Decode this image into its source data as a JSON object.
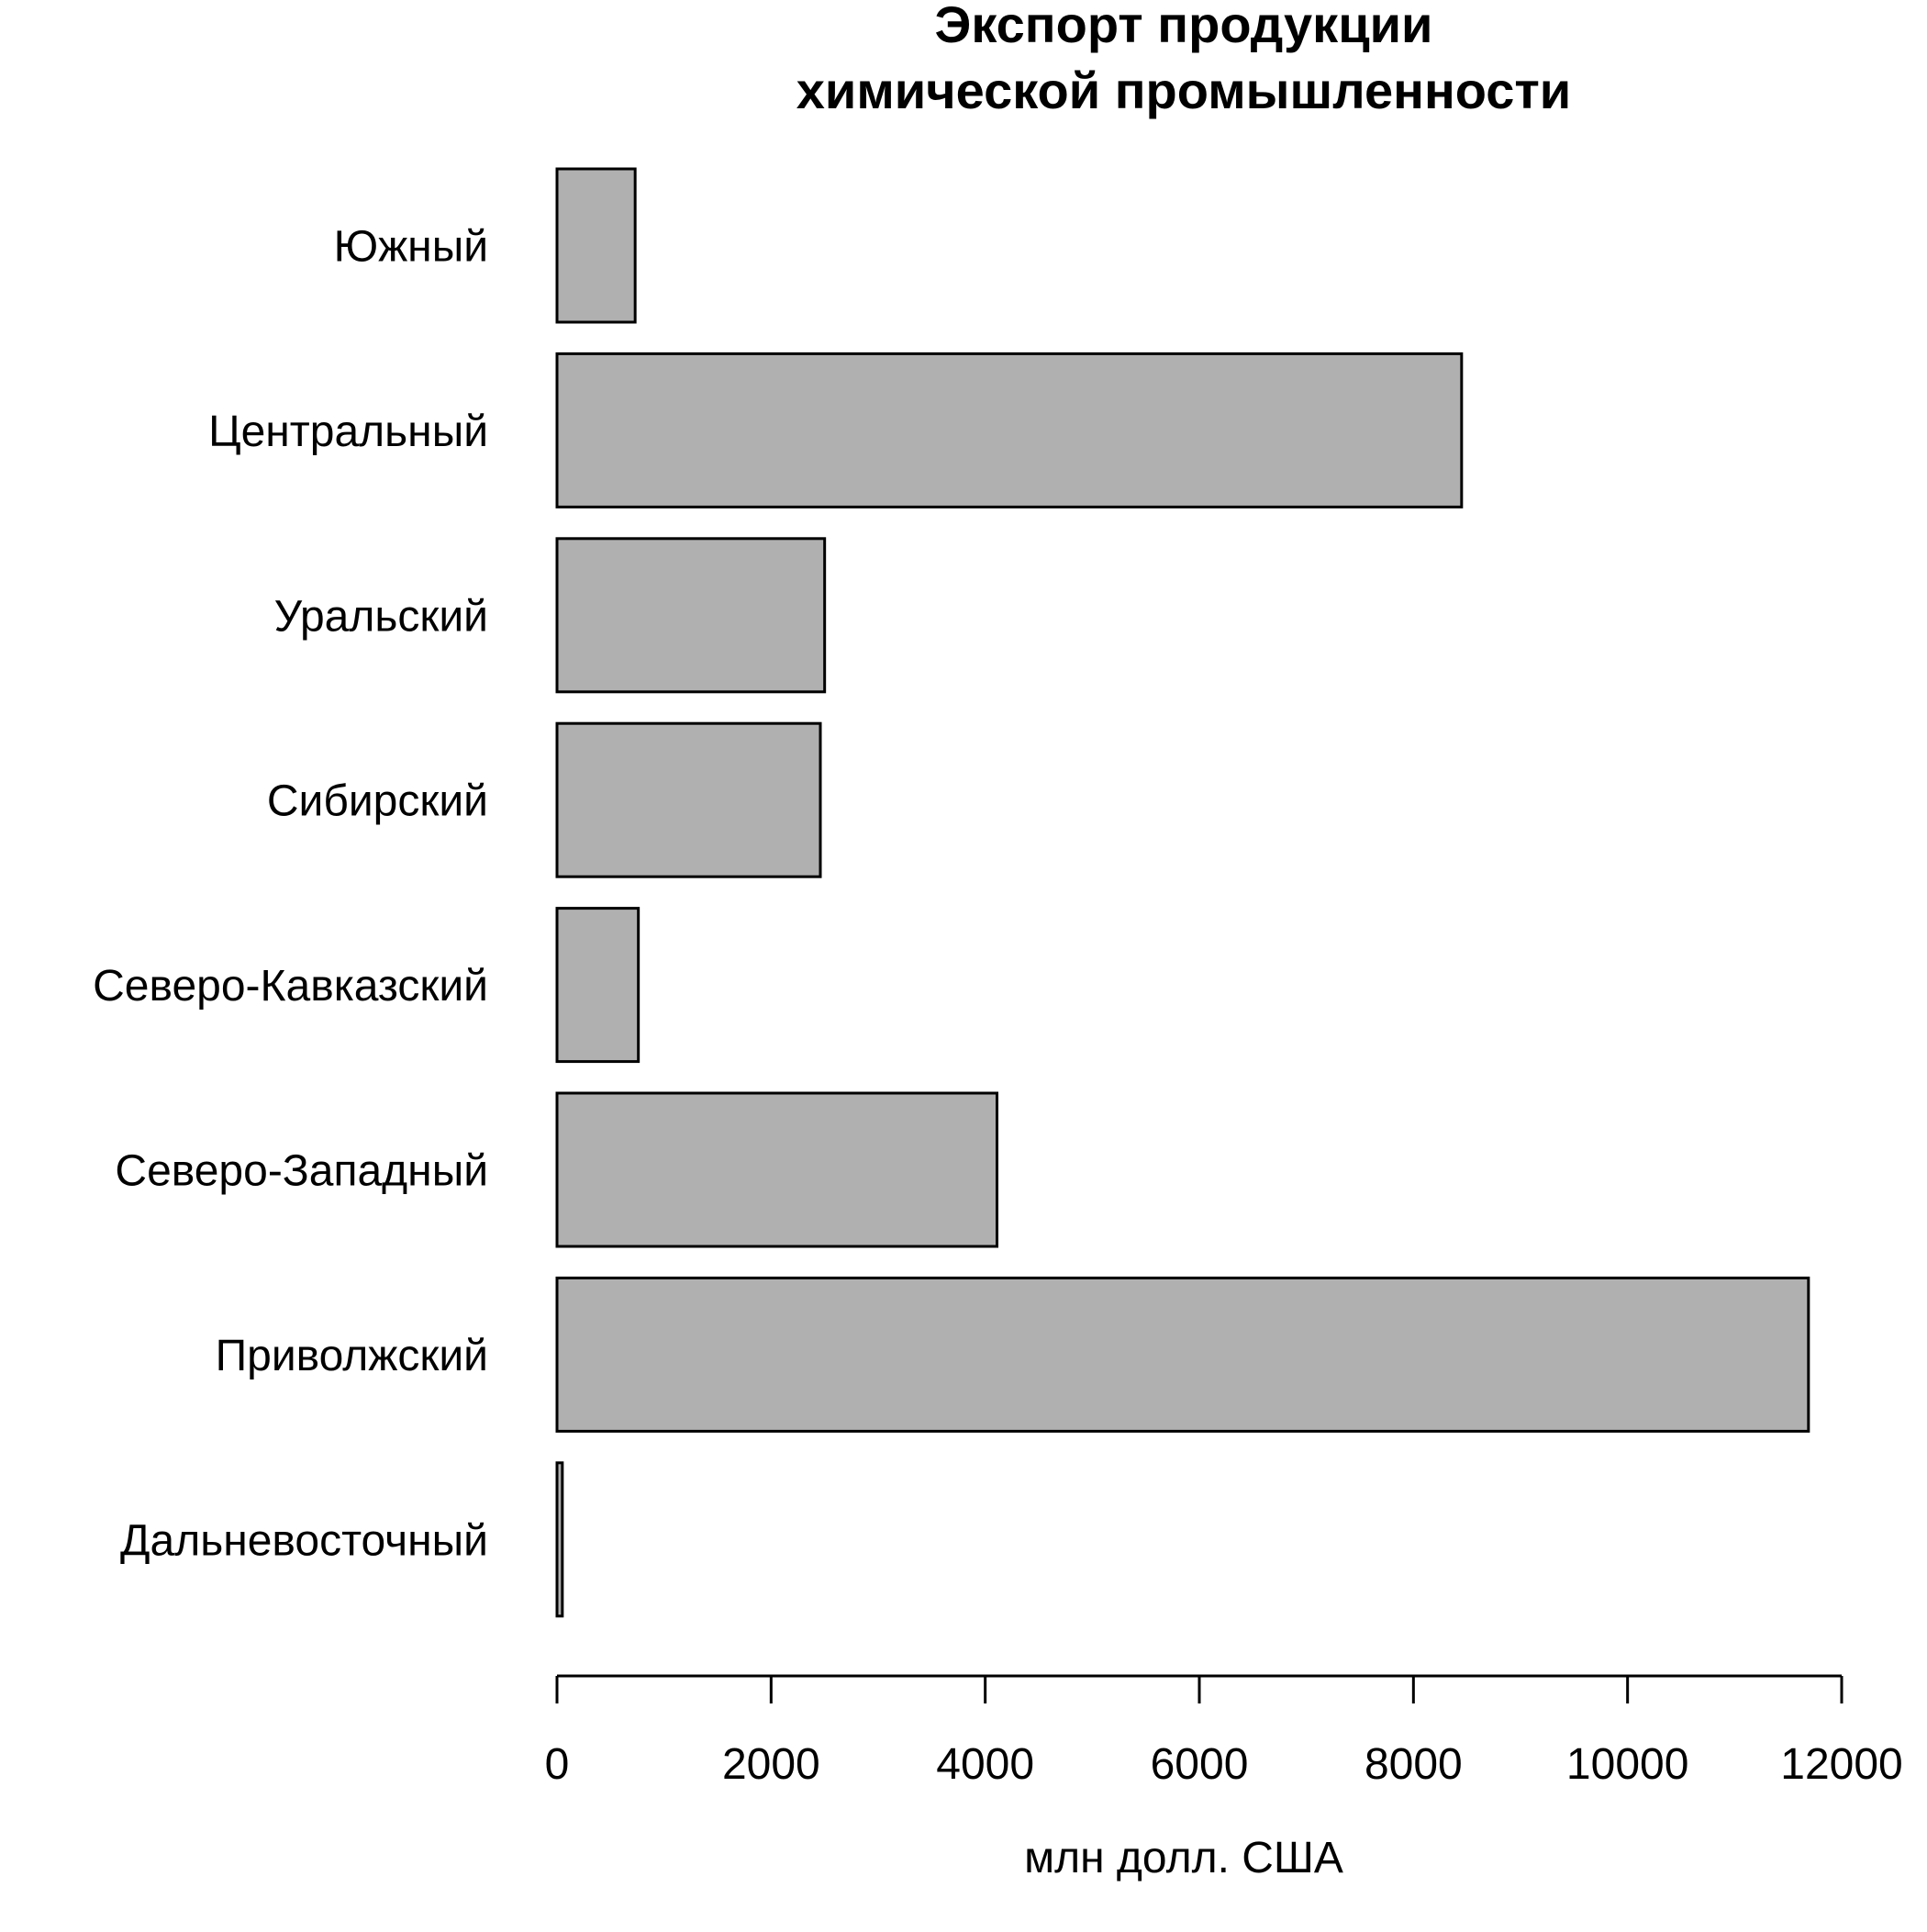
{
  "chart_data": {
    "type": "bar",
    "orientation": "horizontal",
    "title": [
      "Экспорт продукции",
      "химической промышленности"
    ],
    "xlabel": "млн долл. США",
    "ylabel": "",
    "categories": [
      "Южный",
      "Центральный",
      "Уральский",
      "Сибирский",
      "Северо-Кавказский",
      "Северо-Западный",
      "Приволжский",
      "Дальневосточный"
    ],
    "values": [
      730,
      8450,
      2500,
      2460,
      760,
      4110,
      11690,
      50
    ],
    "xlim": [
      0,
      12000
    ],
    "ticks": [
      0,
      2000,
      4000,
      6000,
      8000,
      10000,
      12000
    ],
    "tick_labels": [
      "0",
      "2000",
      "4000",
      "6000",
      "8000",
      "10000",
      "12000"
    ],
    "grid": false,
    "legend": "none",
    "colors": {
      "bar_fill": "#b0b0b0",
      "bar_stroke": "#000000",
      "axis": "#000000",
      "background": "#ffffff"
    }
  }
}
